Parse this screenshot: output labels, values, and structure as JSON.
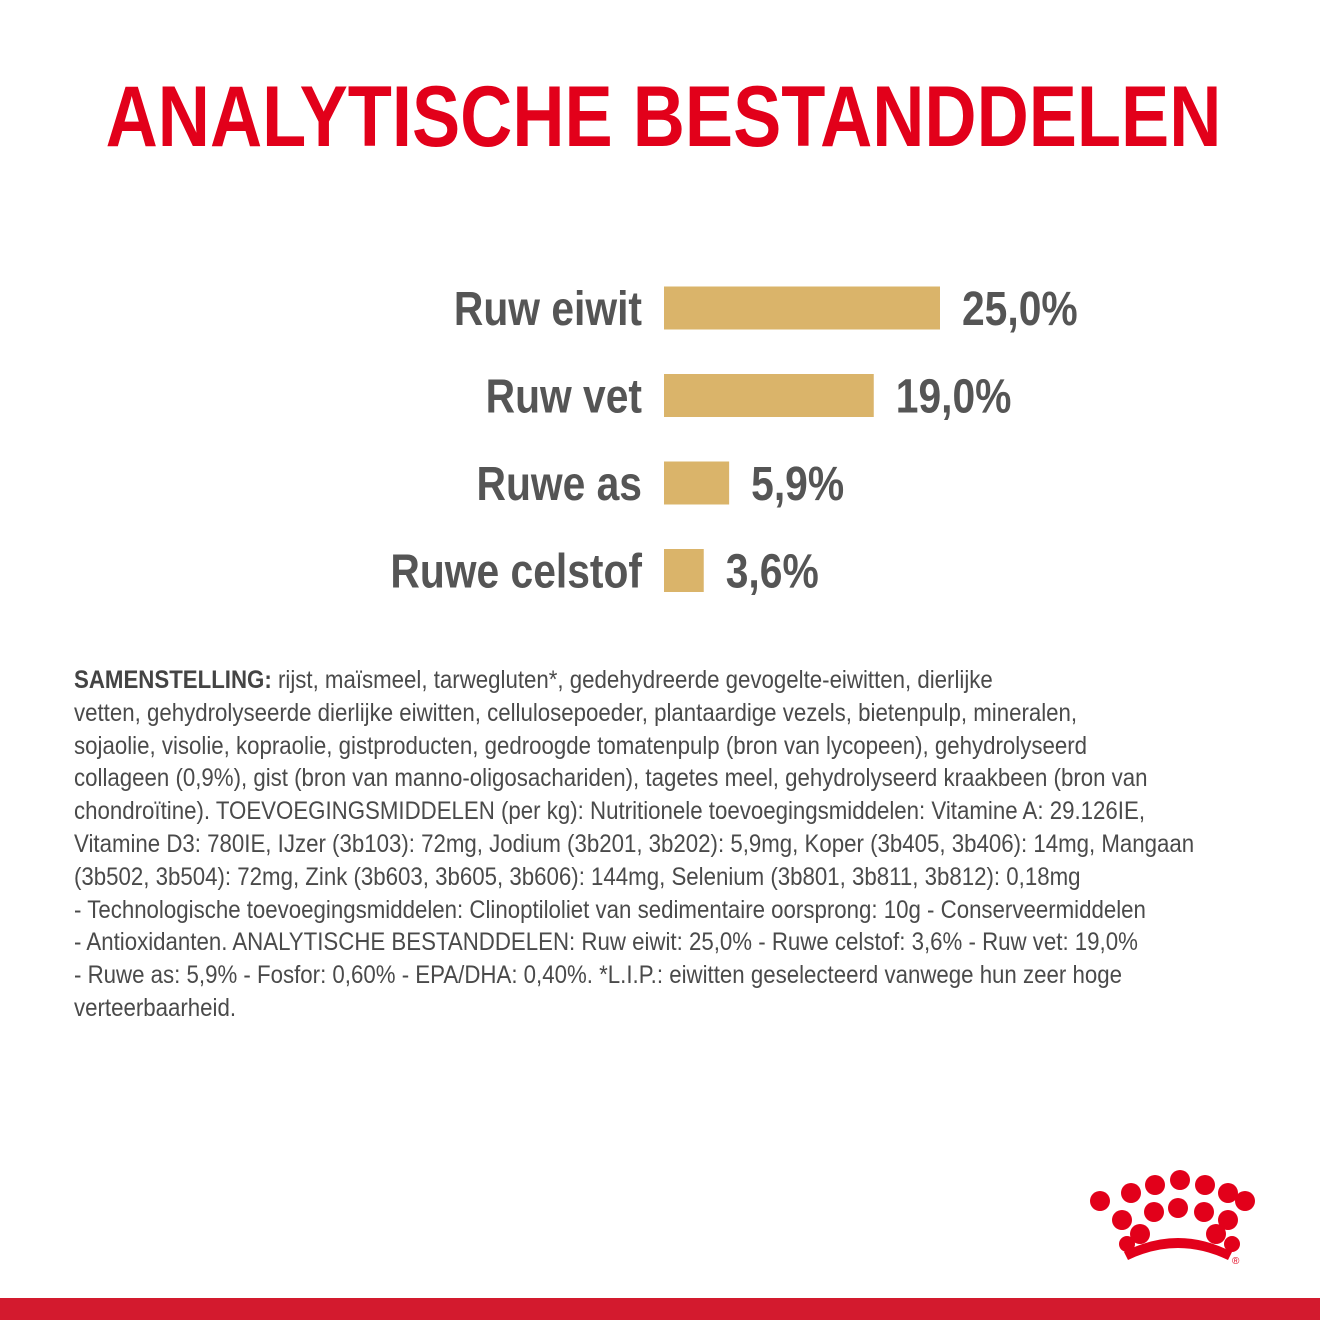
{
  "title": "ANALYTISCHE BESTANDDELEN",
  "chart_data": {
    "type": "bar",
    "orientation": "horizontal",
    "categories": [
      "Ruw eiwit",
      "Ruw vet",
      "Ruwe as",
      "Ruwe celstof"
    ],
    "values": [
      25.0,
      19.0,
      5.9,
      3.6
    ],
    "value_labels": [
      "25,0%",
      "19,0%",
      "5,9%",
      "3,6%"
    ],
    "unit": "%",
    "bar_color": "#dab46a",
    "label_color": "#555555",
    "title": "",
    "xlabel": "",
    "ylabel": "",
    "grid": false,
    "legend": "none"
  },
  "composition": {
    "label": "SAMENSTELLING:",
    "lines": [
      "rijst, maïsmeel, tarwegluten*, gedehydreerde gevogelte-eiwitten, dierlijke",
      "vetten, gehydrolyseerde dierlijke eiwitten, cellulosepoeder, plantaardige vezels, bietenpulp, mineralen,",
      "sojaolie, visolie, kopraolie, gistproducten, gedroogde tomatenpulp (bron van lycopeen), gehydrolyseerd",
      "collageen (0,9%), gist (bron van manno-oligosachariden), tagetes meel, gehydrolyseerd kraakbeen (bron van",
      "chondroïtine). TOEVOEGINGSMIDDELEN (per kg): Nutritionele toevoegingsmiddelen: Vitamine A: 29.126IE,",
      "Vitamine D3: 780IE, IJzer (3b103): 72mg, Jodium (3b201, 3b202): 5,9mg, Koper (3b405, 3b406): 14mg, Mangaan",
      "(3b502, 3b504): 72mg, Zink (3b603, 3b605, 3b606): 144mg, Selenium (3b801, 3b811, 3b812): 0,18mg",
      "- Technologische toevoegingsmiddelen: Clinoptiloliet van sedimentaire oorsprong: 10g - Conserveermiddelen",
      "- Antioxidanten. ANALYTISCHE BESTANDDELEN: Ruw eiwit: 25,0% - Ruwe celstof: 3,6% - Ruw vet: 19,0%",
      "- Ruwe as: 5,9% - Fosfor: 0,60% - EPA/DHA: 0,40%. *L.I.P.: eiwitten geselecteerd vanwege hun zeer hoge",
      "verteerbaarheid."
    ]
  },
  "logo": {
    "icon": "crown-icon",
    "color": "#e2001a",
    "mark": "®"
  },
  "colors": {
    "title": "#e2001a",
    "bar": "#dab46a",
    "text": "#4a4a4a",
    "footer_bar": "#d31a2e"
  }
}
